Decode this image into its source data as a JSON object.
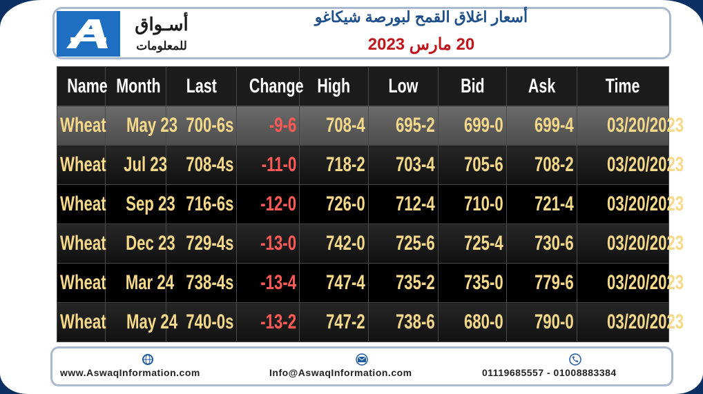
{
  "header": {
    "logo": {
      "line1": "أسـواق",
      "line2": "للمعلومات"
    },
    "title": "أسعار اغلاق القمح لبورصة شيكاغو",
    "date": "20 مارس 2023"
  },
  "table": {
    "columns": [
      "Name",
      "Month",
      "Last",
      "Change",
      "High",
      "Low",
      "Bid",
      "Ask",
      "Time"
    ],
    "rows": [
      [
        "Wheat",
        "May 23",
        "700-6s",
        "-9-6",
        "708-4",
        "695-2",
        "699-0",
        "699-4",
        "03/20/2023"
      ],
      [
        "Wheat",
        "Jul 23",
        "708-4s",
        "-11-0",
        "718-2",
        "703-4",
        "705-6",
        "708-2",
        "03/20/2023"
      ],
      [
        "Wheat",
        "Sep 23",
        "716-6s",
        "-12-0",
        "726-0",
        "712-4",
        "710-0",
        "721-4",
        "03/20/2023"
      ],
      [
        "Wheat",
        "Dec 23",
        "729-4s",
        "-13-0",
        "742-0",
        "725-6",
        "725-4",
        "730-6",
        "03/20/2023"
      ],
      [
        "Wheat",
        "Mar 24",
        "738-4s",
        "-13-4",
        "747-4",
        "735-2",
        "735-0",
        "779-6",
        "03/20/2023"
      ],
      [
        "Wheat",
        "May 24",
        "740-0s",
        "-13-2",
        "747-2",
        "738-6",
        "680-0",
        "790-0",
        "03/20/2023"
      ]
    ]
  },
  "footer": {
    "website": "www.AswaqInformation.com",
    "email": "Info@AswaqInformation.com",
    "phones": "01119685557 - 01008883384"
  }
}
